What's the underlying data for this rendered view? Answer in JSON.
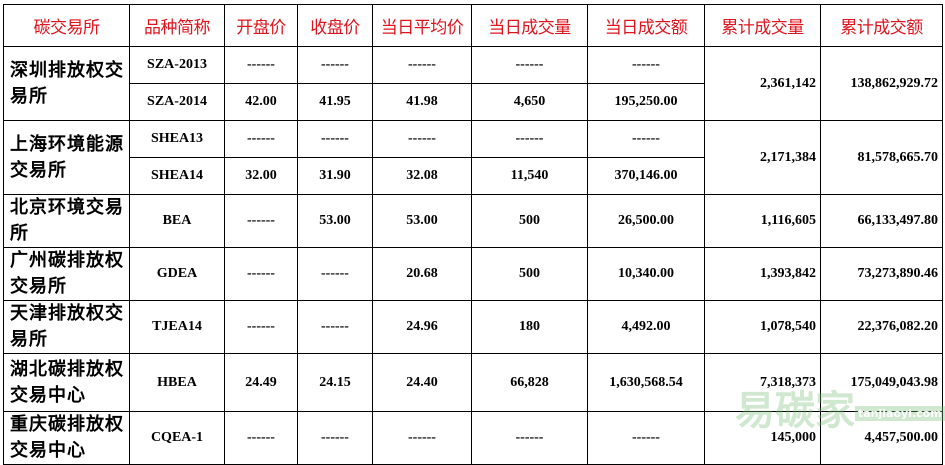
{
  "headers": [
    "碳交易所",
    "品种简称",
    "开盘价",
    "收盘价",
    "当日平均价",
    "当日成交量",
    "当日成交额",
    "累计成交量",
    "累计成交额"
  ],
  "exchanges": [
    {
      "name": "深圳排放权交易所",
      "cum_volume": "2,361,142",
      "cum_amount": "138,862,929.72",
      "products": [
        {
          "code": "SZA-2013",
          "open": "------",
          "close": "------",
          "avg": "------",
          "volume": "------",
          "amount": "------"
        },
        {
          "code": "SZA-2014",
          "open": "42.00",
          "close": "41.95",
          "avg": "41.98",
          "volume": "4,650",
          "amount": "195,250.00"
        }
      ]
    },
    {
      "name": "上海环境能源交易所",
      "cum_volume": "2,171,384",
      "cum_amount": "81,578,665.70",
      "products": [
        {
          "code": "SHEA13",
          "open": "------",
          "close": "------",
          "avg": "------",
          "volume": "------",
          "amount": "------"
        },
        {
          "code": "SHEA14",
          "open": "32.00",
          "close": "31.90",
          "avg": "32.08",
          "volume": "11,540",
          "amount": "370,146.00"
        }
      ]
    },
    {
      "name": "北京环境交易所",
      "cum_volume": "1,116,605",
      "cum_amount": "66,133,497.80",
      "products": [
        {
          "code": "BEA",
          "open": "------",
          "close": "53.00",
          "avg": "53.00",
          "volume": "500",
          "amount": "26,500.00"
        }
      ]
    },
    {
      "name": "广州碳排放权交易所",
      "cum_volume": "1,393,842",
      "cum_amount": "73,273,890.46",
      "products": [
        {
          "code": "GDEA",
          "open": "------",
          "close": "------",
          "avg": "20.68",
          "volume": "500",
          "amount": "10,340.00"
        }
      ]
    },
    {
      "name": "天津排放权交易所",
      "cum_volume": "1,078,540",
      "cum_amount": "22,376,082.20",
      "products": [
        {
          "code": "TJEA14",
          "open": "------",
          "close": "------",
          "avg": "24.96",
          "volume": "180",
          "amount": "4,492.00"
        }
      ]
    },
    {
      "name": "湖北碳排放权交易中心",
      "cum_volume": "7,318,373",
      "cum_amount": "175,049,043.98",
      "products": [
        {
          "code": "HBEA",
          "open": "24.49",
          "close": "24.15",
          "avg": "24.40",
          "volume": "66,828",
          "amount": "1,630,568.54"
        }
      ]
    },
    {
      "name": "重庆碳排放权交易中心",
      "cum_volume": "145,000",
      "cum_amount": "4,457,500.00",
      "products": [
        {
          "code": "CQEA-1",
          "open": "------",
          "close": "------",
          "avg": "------",
          "volume": "------",
          "amount": "------"
        }
      ]
    }
  ],
  "watermark": {
    "text": "易碳家",
    "domain": "tanjiaoyi.com"
  },
  "colors": {
    "header_text": "#e0141e",
    "watermark": "#78be78"
  }
}
